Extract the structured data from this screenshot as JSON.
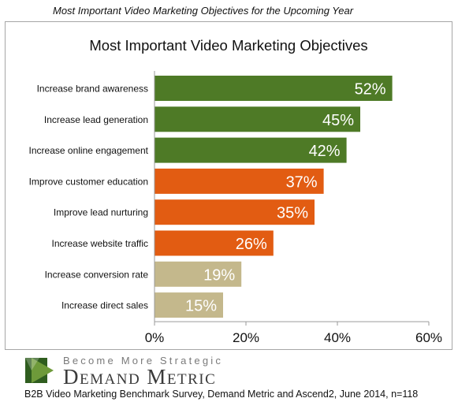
{
  "top_caption": "Most Important Video Marketing Objectives for the Upcoming Year",
  "source": "B2B Video Marketing Benchmark Survey, Demand Metric and Ascend2, June 2014, n=118",
  "brand": {
    "tagline": "Become More Strategic",
    "name": "Demand Metric"
  },
  "colors": {
    "green": "#4e7a26",
    "orange": "#e25c12",
    "tan": "#c4b88c",
    "axis": "#9a9a9a"
  },
  "chart_data": {
    "type": "bar",
    "orientation": "horizontal",
    "title": "Most Important Video Marketing Objectives",
    "categories": [
      "Increase brand awareness",
      "Increase lead generation",
      "Increase online engagement",
      "Improve customer education",
      "Improve lead nurturing",
      "Increase website traffic",
      "Increase conversion rate",
      "Increase direct sales"
    ],
    "values": [
      52,
      45,
      42,
      37,
      35,
      26,
      19,
      15
    ],
    "value_labels": [
      "52%",
      "45%",
      "42%",
      "37%",
      "35%",
      "26%",
      "19%",
      "15%"
    ],
    "bar_colors": [
      "#4e7a26",
      "#4e7a26",
      "#4e7a26",
      "#e25c12",
      "#e25c12",
      "#e25c12",
      "#c4b88c",
      "#c4b88c"
    ],
    "xlim": [
      0,
      60
    ],
    "xticks": [
      0,
      20,
      40,
      60
    ],
    "xtick_labels": [
      "0%",
      "20%",
      "40%",
      "60%"
    ],
    "grid": false
  }
}
